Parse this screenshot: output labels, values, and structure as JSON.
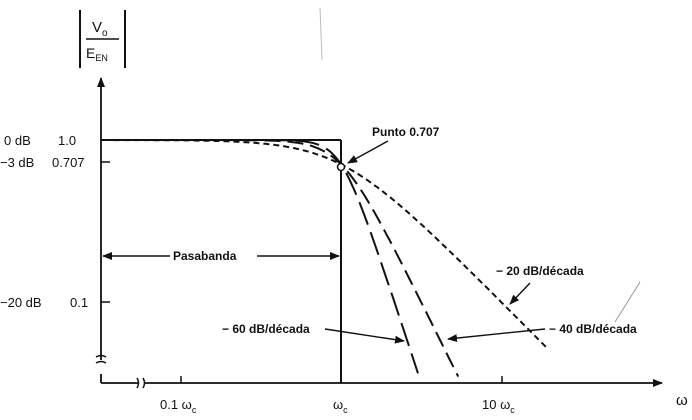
{
  "chart_data": {
    "type": "line",
    "y_axis_label": {
      "num": "V",
      "num_sub": "o",
      "den": "E",
      "den_sub": "EN"
    },
    "x_axis_label": "ω",
    "x_scale": "log",
    "y_scale": "log",
    "y_ticks": [
      {
        "db": "0 dB",
        "value": "1.0"
      },
      {
        "db": "−3 dB",
        "value": "0.707"
      },
      {
        "db": "−20 dB",
        "value": "0.1"
      }
    ],
    "x_ticks": [
      {
        "main": "0.1 ω",
        "sub": "c",
        "value": 0.1
      },
      {
        "main": "ω",
        "sub": "c",
        "value": 1
      },
      {
        "main": "10 ω",
        "sub": "c",
        "value": 10
      }
    ],
    "ideal_response": {
      "passband_gain": 1.0,
      "cutoff": 1
    },
    "series": [
      {
        "name": "− 20 dB/década",
        "order": 1,
        "slope_db_per_decade": -20,
        "corner_gain": 0.707,
        "style": "short-dash"
      },
      {
        "name": "− 40 dB/década",
        "order": 2,
        "slope_db_per_decade": -40,
        "corner_gain": 0.707,
        "style": "long-dash"
      },
      {
        "name": "− 60 dB/década",
        "order": 3,
        "slope_db_per_decade": -60,
        "corner_gain": 0.707,
        "style": "longer-dash"
      }
    ],
    "annotations": {
      "punto": "Punto 0.707",
      "pasabanda": "Pasabanda",
      "slope20": "− 20 dB/década",
      "slope40": "− 40 dB/década",
      "slope60": "− 60 dB/década"
    }
  }
}
